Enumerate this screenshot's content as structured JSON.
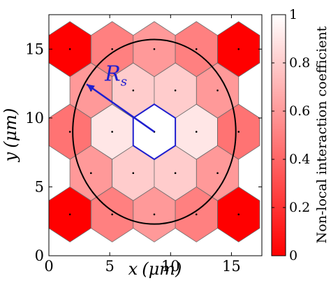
{
  "chart_data": {
    "type": "heatmap",
    "subtype": "hexagonal-lattice",
    "xlabel": "x (µm)",
    "ylabel": "y (µm)",
    "x_axis": {
      "label_var": "x",
      "label_unit": "(μm)",
      "range": [
        0,
        17.5
      ],
      "ticks": [
        0,
        5,
        10,
        15
      ]
    },
    "y_axis": {
      "label_var": "y",
      "label_unit": "(μm)",
      "range": [
        0,
        17.5
      ],
      "ticks": [
        0,
        5,
        10,
        15
      ]
    },
    "colorbar": {
      "label": "Non-local interaction coefficient",
      "range": [
        0,
        1
      ],
      "ticks": [
        0,
        0.2,
        0.4,
        0.6,
        0.8,
        1
      ],
      "tick_labels": [
        "0",
        "0.2",
        "0.4",
        "0.6",
        "0.8",
        "1"
      ],
      "color_low": "#ff0000",
      "color_high": "#ffffff"
    },
    "hex_side_um": 2,
    "cells": [
      {
        "x": 1.73,
        "y": 3,
        "value": 0.0
      },
      {
        "x": 5.2,
        "y": 3,
        "value": 0.5
      },
      {
        "x": 8.66,
        "y": 3,
        "value": 0.6
      },
      {
        "x": 12.12,
        "y": 3,
        "value": 0.5
      },
      {
        "x": 15.59,
        "y": 3,
        "value": 0.0
      },
      {
        "x": 3.46,
        "y": 6,
        "value": 0.6
      },
      {
        "x": 6.93,
        "y": 6,
        "value": 0.8
      },
      {
        "x": 10.39,
        "y": 6,
        "value": 0.8
      },
      {
        "x": 13.86,
        "y": 6,
        "value": 0.6
      },
      {
        "x": 1.73,
        "y": 9,
        "value": 0.45
      },
      {
        "x": 5.2,
        "y": 9,
        "value": 0.9
      },
      {
        "x": 8.66,
        "y": 9,
        "value": 1.0
      },
      {
        "x": 12.12,
        "y": 9,
        "value": 0.9
      },
      {
        "x": 15.59,
        "y": 9,
        "value": 0.45
      },
      {
        "x": 3.46,
        "y": 12,
        "value": 0.6
      },
      {
        "x": 6.93,
        "y": 12,
        "value": 0.8
      },
      {
        "x": 10.39,
        "y": 12,
        "value": 0.8
      },
      {
        "x": 13.86,
        "y": 12,
        "value": 0.6
      },
      {
        "x": 1.73,
        "y": 15,
        "value": 0.0
      },
      {
        "x": 5.2,
        "y": 15,
        "value": 0.5
      },
      {
        "x": 8.66,
        "y": 15,
        "value": 0.6
      },
      {
        "x": 12.12,
        "y": 15,
        "value": 0.5
      },
      {
        "x": 15.59,
        "y": 15,
        "value": 0.0
      }
    ],
    "circle": {
      "center": [
        8.66,
        9
      ],
      "radius": 6.7,
      "color": "#000000"
    },
    "highlight_cell": {
      "center": [
        8.66,
        9
      ],
      "color": "#1f1fcf"
    },
    "radius_arrow": {
      "from": [
        8.66,
        9
      ],
      "to": [
        3.1,
        12.45
      ],
      "label": "R",
      "label_sub": "s",
      "color": "#1f1fcf"
    },
    "grid": false,
    "legend": "none"
  }
}
